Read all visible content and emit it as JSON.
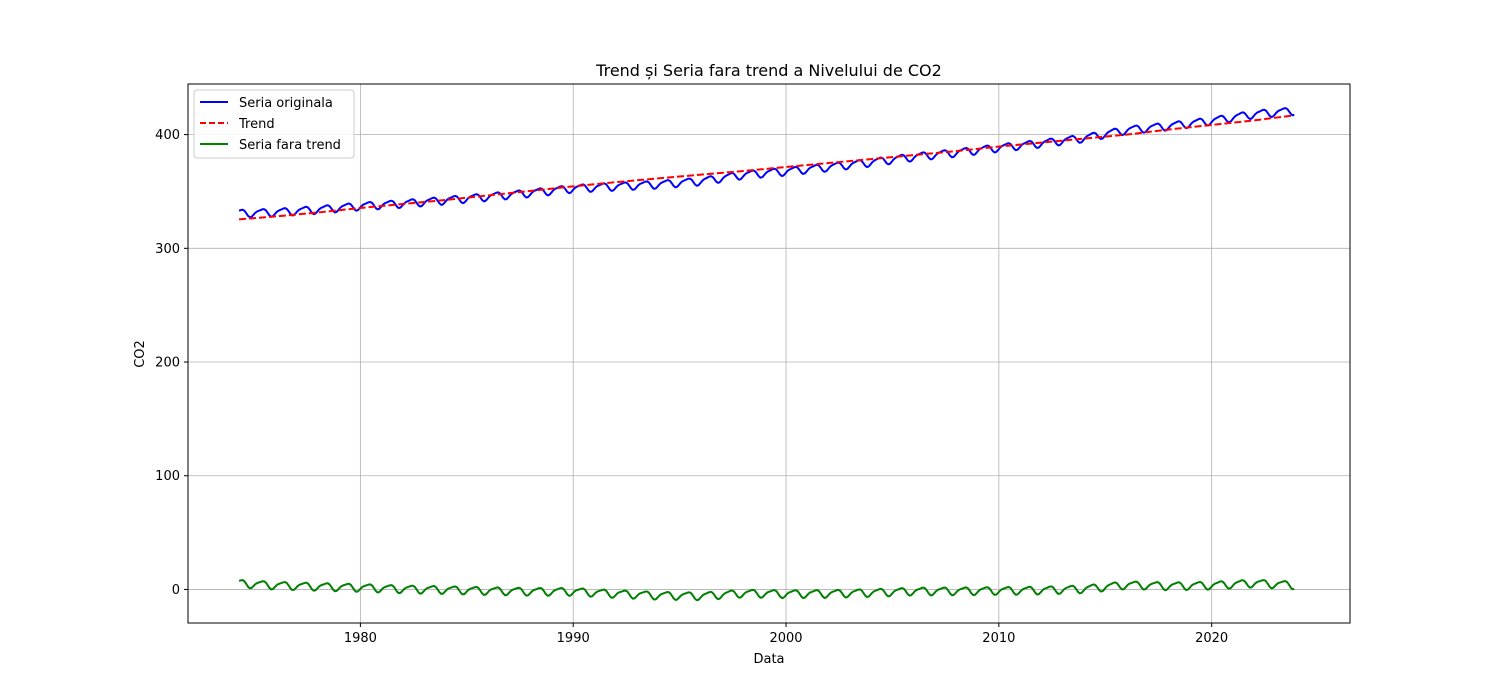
{
  "chart_data": {
    "type": "line",
    "title": "Trend și Seria fara trend a Nivelului de CO2",
    "xlabel": "Data",
    "ylabel": "CO2",
    "xlim": [
      1971.9,
      2026.5
    ],
    "ylim": [
      -29.5,
      444.5
    ],
    "x_ticks": [
      1980,
      1990,
      2000,
      2010,
      2020
    ],
    "y_ticks": [
      0,
      100,
      200,
      300,
      400
    ],
    "x_tick_labels": [
      "1980",
      "1990",
      "2000",
      "2010",
      "2020"
    ],
    "y_tick_labels": [
      "0",
      "100",
      "200",
      "300",
      "400"
    ],
    "grid": true,
    "legend_position": "top-left",
    "x_range": [
      1974.3,
      2023.9
    ],
    "seasonal_amplitude": 3.2,
    "series": [
      {
        "name": "Seria originala",
        "color": "#0000ff",
        "style": "solid",
        "x": [
          1974.3,
          1976,
          1978,
          1980,
          1982,
          1984,
          1986,
          1988,
          1990,
          1992,
          1994,
          1996,
          1998,
          2000,
          2002,
          2004,
          2006,
          2008,
          2010,
          2012,
          2014,
          2016,
          2018,
          2020,
          2022,
          2023.9
        ],
        "y": [
          330.9,
          331.8,
          334.2,
          337.3,
          339.5,
          342.4,
          345.5,
          348.9,
          352.8,
          354.6,
          356.4,
          359.2,
          364.8,
          367.8,
          371.5,
          375.8,
          380.6,
          384.3,
          388.6,
          392.5,
          397.1,
          404.2,
          407.7,
          412.3,
          418.2,
          421.0
        ]
      },
      {
        "name": "Trend",
        "color": "#ff0000",
        "style": "dashed",
        "x": [
          1974.3,
          1976,
          1978,
          1980,
          1982,
          1984,
          1986,
          1988,
          1990,
          1992,
          1994,
          1996,
          1998,
          2000,
          2002,
          2004,
          2006,
          2008,
          2010,
          2012,
          2014,
          2016,
          2018,
          2020,
          2022,
          2023.9
        ],
        "y": [
          325.5,
          328.0,
          331.5,
          335.5,
          339.0,
          342.5,
          346.5,
          350.5,
          354.5,
          358.2,
          361.5,
          364.8,
          368.0,
          371.5,
          375.0,
          378.5,
          382.0,
          385.5,
          389.5,
          393.0,
          396.5,
          400.0,
          404.5,
          408.5,
          412.5,
          417.0
        ]
      },
      {
        "name": "Seria fara trend",
        "color": "#008000",
        "style": "solid",
        "x": [
          1974.3,
          1976,
          1978,
          1980,
          1982,
          1984,
          1986,
          1988,
          1990,
          1992,
          1994,
          1996,
          1998,
          2000,
          2002,
          2004,
          2006,
          2008,
          2010,
          2012,
          2014,
          2016,
          2018,
          2020,
          2022,
          2023.9
        ],
        "y": [
          5.4,
          3.8,
          2.7,
          1.8,
          0.5,
          -0.1,
          -1.0,
          -1.6,
          -1.7,
          -3.6,
          -5.1,
          -5.6,
          -3.2,
          -3.7,
          -3.5,
          -2.7,
          -1.4,
          -1.2,
          -0.9,
          -0.5,
          0.6,
          4.2,
          3.2,
          3.8,
          5.7,
          4.0
        ]
      }
    ]
  }
}
